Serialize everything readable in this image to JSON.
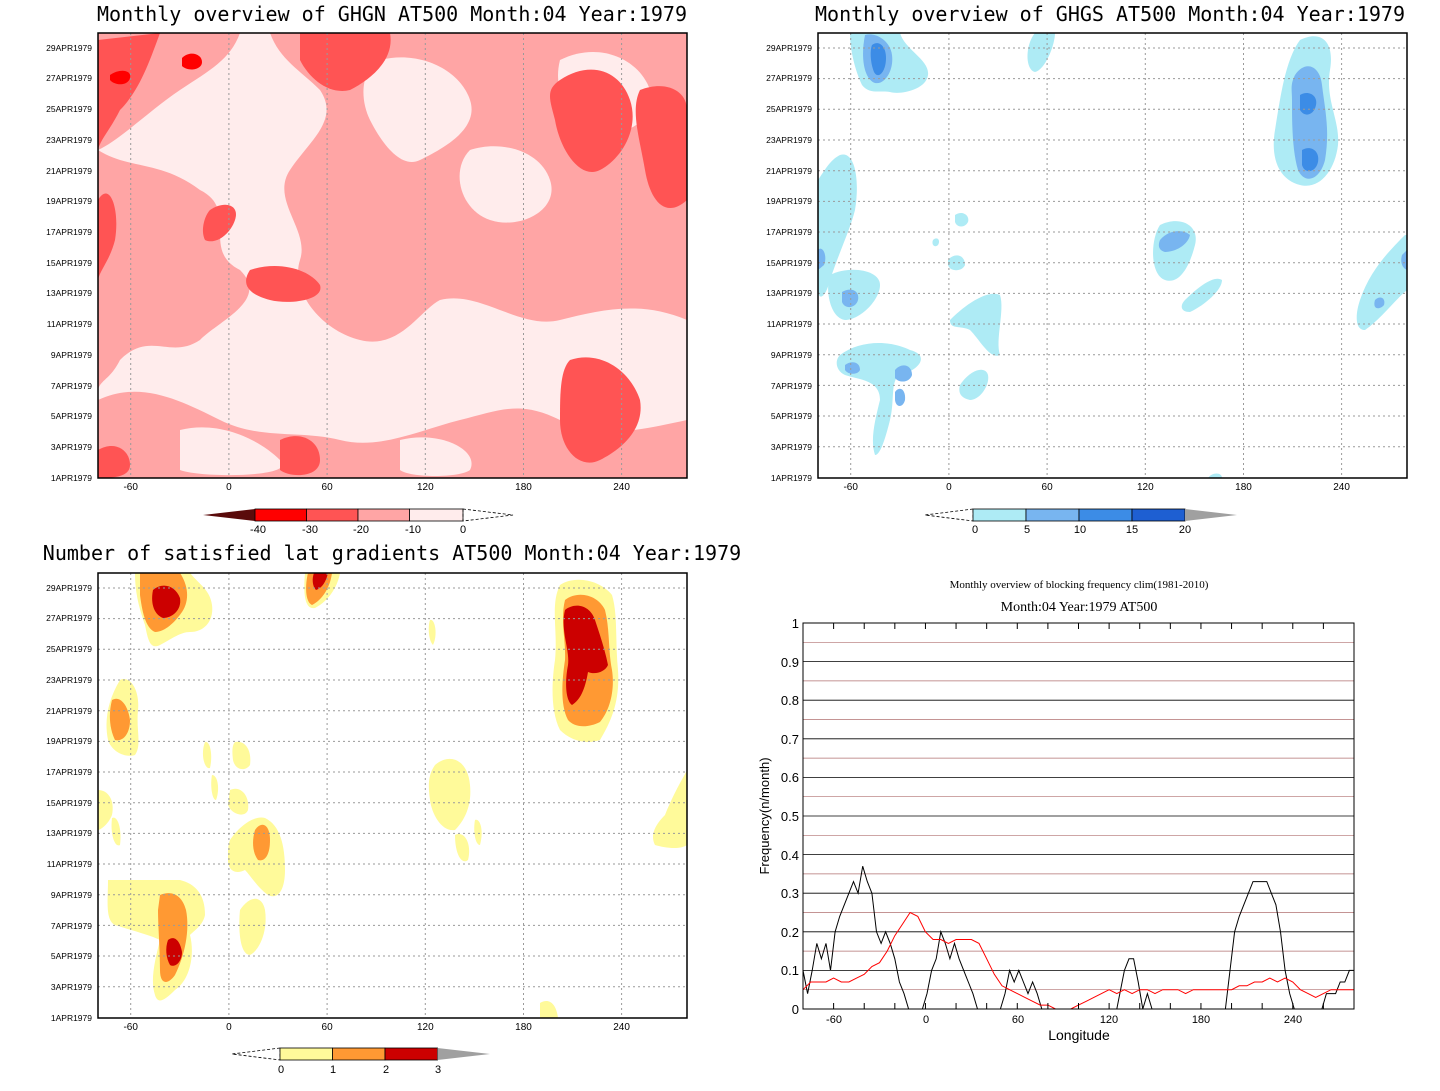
{
  "panels": {
    "ghgn": {
      "title": "Monthly overview of GHGN AT500 Month:04 Year:1979",
      "colorbar": [
        "-40",
        "-30",
        "-20",
        "-10",
        "0"
      ],
      "colors": [
        "#5a0b0b",
        "#ff0000",
        "#ff5454",
        "#ffa5a5",
        "#ffecec"
      ]
    },
    "ghgs": {
      "title": "Monthly overview of GHGS AT500 Month:04 Year:1979",
      "colorbar": [
        "0",
        "5",
        "10",
        "15",
        "20"
      ],
      "colors": [
        "#aeebf5",
        "#78b5f0",
        "#3c8ce6",
        "#1e5fd2",
        "#a0a0a0"
      ]
    },
    "lat_gradients": {
      "title": "Number of satisfied lat gradients AT500 Month:04 Year:1979",
      "colorbar": [
        "0",
        "1",
        "2",
        "3"
      ],
      "colors": [
        "#fffa9a",
        "#ff9933",
        "#cc0000",
        "#a0a0a0"
      ]
    }
  },
  "y_dates": [
    "1APR1979",
    "3APR1979",
    "5APR1979",
    "7APR1979",
    "9APR1979",
    "11APR1979",
    "13APR1979",
    "15APR1979",
    "17APR1979",
    "19APR1979",
    "21APR1979",
    "23APR1979",
    "25APR1979",
    "27APR1979",
    "29APR1979"
  ],
  "x_ticks": [
    "-60",
    "0",
    "60",
    "120",
    "180",
    "240"
  ],
  "chart_data": [
    {
      "type": "heatmap",
      "title": "Monthly overview of GHGN AT500 Month:04 Year:1979",
      "xlim": [
        -80,
        280
      ],
      "x_ticks": [
        -60,
        0,
        60,
        120,
        180,
        240
      ],
      "y_ticks": [
        "1APR1979",
        "3APR1979",
        "5APR1979",
        "7APR1979",
        "9APR1979",
        "11APR1979",
        "13APR1979",
        "15APR1979",
        "17APR1979",
        "19APR1979",
        "21APR1979",
        "23APR1979",
        "25APR1979",
        "27APR1979",
        "29APR1979"
      ],
      "levels": [
        -40,
        -30,
        -20,
        -10,
        0
      ]
    },
    {
      "type": "heatmap",
      "title": "Monthly overview of GHGS AT500 Month:04 Year:1979",
      "xlim": [
        -80,
        280
      ],
      "x_ticks": [
        -60,
        0,
        60,
        120,
        180,
        240
      ],
      "y_ticks": [
        "1APR1979",
        "3APR1979",
        "5APR1979",
        "7APR1979",
        "9APR1979",
        "11APR1979",
        "13APR1979",
        "15APR1979",
        "17APR1979",
        "19APR1979",
        "21APR1979",
        "23APR1979",
        "25APR1979",
        "27APR1979",
        "29APR1979"
      ],
      "levels": [
        0,
        5,
        10,
        15,
        20
      ]
    },
    {
      "type": "heatmap",
      "title": "Number of satisfied lat gradients AT500 Month:04 Year:1979",
      "xlim": [
        -80,
        280
      ],
      "x_ticks": [
        -60,
        0,
        60,
        120,
        180,
        240
      ],
      "y_ticks": [
        "1APR1979",
        "3APR1979",
        "5APR1979",
        "7APR1979",
        "9APR1979",
        "11APR1979",
        "13APR1979",
        "15APR1979",
        "17APR1979",
        "19APR1979",
        "21APR1979",
        "23APR1979",
        "25APR1979",
        "27APR1979",
        "29APR1979"
      ],
      "levels": [
        0,
        1,
        2,
        3
      ]
    },
    {
      "type": "line",
      "title": "Monthly overview of blocking frequency clim(1981-2010)",
      "subtitle": "Month:04 Year:1979  AT500",
      "xlabel": "Longitude",
      "ylabel": "Frequency(n/month)",
      "xlim": [
        -80,
        280
      ],
      "ylim": [
        0,
        1
      ],
      "x_ticks": [
        -60,
        0,
        60,
        120,
        180,
        240
      ],
      "y_ticks": [
        0,
        0.1,
        0.2,
        0.3,
        0.4,
        0.5,
        0.6,
        0.7,
        0.8,
        0.9,
        1
      ],
      "grid": true,
      "series": [
        {
          "color": "#000000",
          "x": [
            -80,
            -77,
            -74,
            -71,
            -68,
            -65,
            -62,
            -59,
            -56,
            -53,
            -50,
            -47,
            -44,
            -41,
            -38,
            -35,
            -32,
            -29,
            -26,
            -23,
            -20,
            -17,
            -14,
            -11,
            -8,
            -5,
            -2,
            1,
            4,
            7,
            10,
            13,
            16,
            19,
            22,
            25,
            28,
            31,
            34,
            37,
            40,
            43,
            46,
            49,
            52,
            55,
            58,
            61,
            64,
            67,
            70,
            73,
            76,
            79,
            82,
            110,
            125,
            130,
            133,
            136,
            139,
            142,
            145,
            148,
            151,
            196,
            199,
            202,
            205,
            208,
            211,
            214,
            217,
            220,
            223,
            226,
            229,
            232,
            235,
            238,
            241,
            244,
            247,
            250,
            253,
            256,
            259,
            262,
            265,
            268,
            271,
            274,
            277,
            280
          ],
          "values": [
            0.1,
            0.04,
            0.1,
            0.17,
            0.13,
            0.17,
            0.1,
            0.2,
            0.24,
            0.27,
            0.3,
            0.33,
            0.3,
            0.37,
            0.33,
            0.3,
            0.2,
            0.17,
            0.2,
            0.17,
            0.13,
            0.07,
            0.04,
            0.0,
            0.0,
            0.0,
            0.0,
            0.04,
            0.1,
            0.13,
            0.2,
            0.17,
            0.13,
            0.17,
            0.13,
            0.1,
            0.07,
            0.04,
            0.0,
            0.0,
            0.0,
            0.0,
            0.0,
            0.0,
            0.04,
            0.1,
            0.07,
            0.1,
            0.07,
            0.04,
            0.07,
            0.04,
            0.0,
            0.0,
            0.0,
            0.0,
            0.0,
            0.1,
            0.13,
            0.13,
            0.07,
            0.0,
            0.04,
            0.0,
            0.0,
            0.0,
            0.1,
            0.2,
            0.24,
            0.27,
            0.3,
            0.33,
            0.33,
            0.33,
            0.33,
            0.3,
            0.27,
            0.2,
            0.1,
            0.04,
            0.0,
            0.0,
            0.0,
            0.0,
            0.0,
            0.0,
            0.0,
            0.04,
            0.04,
            0.04,
            0.07,
            0.07,
            0.1,
            0.1
          ]
        },
        {
          "color": "#ff0000",
          "x": [
            -80,
            -75,
            -70,
            -65,
            -60,
            -55,
            -50,
            -45,
            -40,
            -35,
            -30,
            -25,
            -20,
            -15,
            -10,
            -5,
            0,
            5,
            10,
            15,
            20,
            25,
            30,
            35,
            40,
            45,
            50,
            55,
            60,
            65,
            70,
            75,
            80,
            85,
            90,
            95,
            100,
            105,
            110,
            115,
            120,
            125,
            130,
            135,
            140,
            145,
            150,
            155,
            160,
            165,
            170,
            175,
            180,
            185,
            190,
            195,
            200,
            205,
            210,
            215,
            220,
            225,
            230,
            235,
            240,
            245,
            250,
            255,
            260,
            265,
            270,
            275,
            280
          ],
          "values": [
            0.05,
            0.07,
            0.07,
            0.07,
            0.08,
            0.07,
            0.07,
            0.08,
            0.09,
            0.11,
            0.12,
            0.15,
            0.19,
            0.22,
            0.25,
            0.24,
            0.2,
            0.18,
            0.18,
            0.17,
            0.18,
            0.18,
            0.18,
            0.17,
            0.13,
            0.09,
            0.06,
            0.05,
            0.04,
            0.03,
            0.02,
            0.01,
            0.01,
            0.0,
            0.0,
            0.0,
            0.01,
            0.02,
            0.03,
            0.04,
            0.05,
            0.04,
            0.05,
            0.04,
            0.05,
            0.05,
            0.04,
            0.05,
            0.05,
            0.05,
            0.04,
            0.05,
            0.05,
            0.05,
            0.05,
            0.05,
            0.05,
            0.06,
            0.06,
            0.07,
            0.07,
            0.08,
            0.07,
            0.08,
            0.07,
            0.05,
            0.04,
            0.03,
            0.04,
            0.05,
            0.05,
            0.05,
            0.05
          ]
        }
      ]
    }
  ],
  "clim_chart": {
    "title": "Monthly overview of blocking frequency clim(1981-2010)",
    "subtitle": "Month:04 Year:1979  AT500",
    "xlabel": "Longitude",
    "ylabel": "Frequency(n/month)",
    "y_tick_labels": [
      "0",
      "0.1",
      "0.2",
      "0.3",
      "0.4",
      "0.5",
      "0.6",
      "0.7",
      "0.8",
      "0.9",
      "1"
    ],
    "x_tick_labels": [
      "-60",
      "0",
      "60",
      "120",
      "180",
      "240"
    ]
  }
}
